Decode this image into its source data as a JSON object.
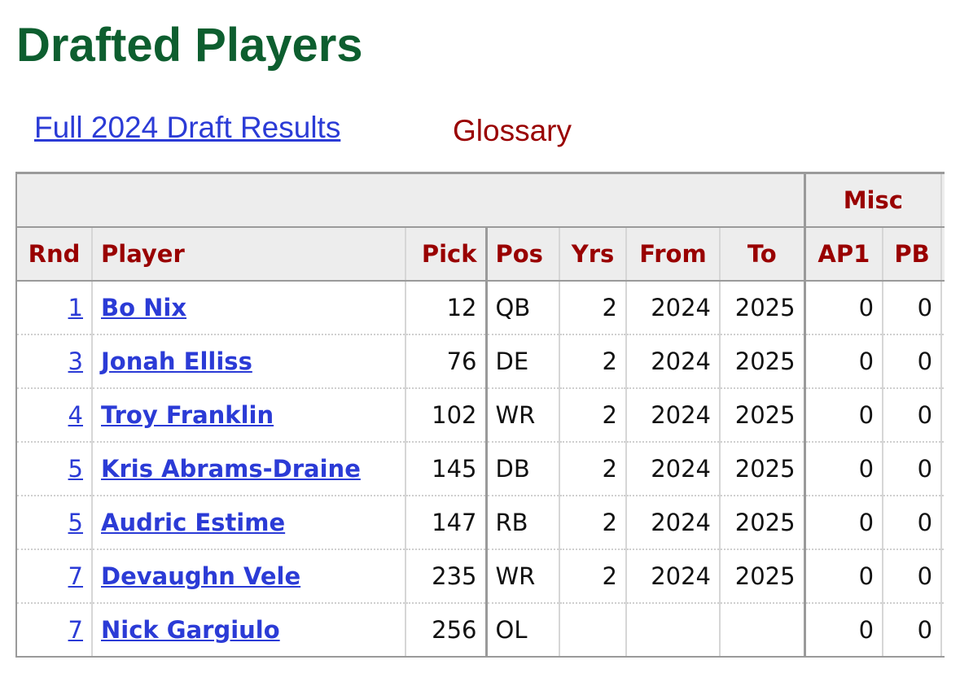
{
  "header": {
    "title": "Drafted Players"
  },
  "links": {
    "draft_results": "Full 2024 Draft Results",
    "glossary": "Glossary"
  },
  "table": {
    "over_header": {
      "misc": "Misc"
    },
    "columns": [
      "Rnd",
      "Player",
      "Pick",
      "Pos",
      "Yrs",
      "From",
      "To",
      "AP1",
      "PB"
    ],
    "rows": [
      [
        1,
        "Bo Nix",
        12,
        "QB",
        2,
        2024,
        2025,
        0,
        0
      ],
      [
        3,
        "Jonah Elliss",
        76,
        "DE",
        2,
        2024,
        2025,
        0,
        0
      ],
      [
        4,
        "Troy Franklin",
        102,
        "WR",
        2,
        2024,
        2025,
        0,
        0
      ],
      [
        5,
        "Kris Abrams-Draine",
        145,
        "DB",
        2,
        2024,
        2025,
        0,
        0
      ],
      [
        5,
        "Audric Estime",
        147,
        "RB",
        2,
        2024,
        2025,
        0,
        0
      ],
      [
        7,
        "Devaughn Vele",
        235,
        "WR",
        2,
        2024,
        2025,
        0,
        0
      ],
      [
        7,
        "Nick Gargiulo",
        256,
        "OL",
        null,
        null,
        null,
        0,
        0
      ]
    ]
  }
}
